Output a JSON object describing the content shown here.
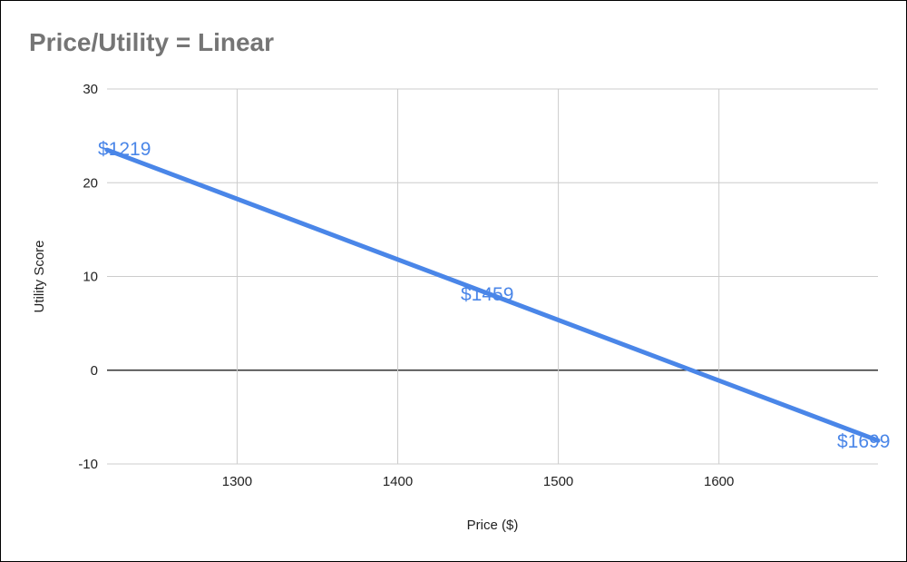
{
  "chart_data": {
    "type": "line",
    "title": "Price/Utility = Linear",
    "xlabel": "Price ($)",
    "ylabel": "Utility Score",
    "xlim": [
      1219,
      1699
    ],
    "ylim": [
      -10,
      30
    ],
    "xticks": [
      1300,
      1400,
      1500,
      1600
    ],
    "yticks": [
      -10,
      0,
      10,
      20,
      30
    ],
    "grid": true,
    "legend": "none",
    "series": [
      {
        "color": "#4a86e8",
        "x": [
          1219,
          1459,
          1699
        ],
        "y": [
          23.5,
          8,
          -7.5
        ],
        "labels": [
          "$1219",
          "$1459",
          "$1699"
        ]
      }
    ]
  }
}
